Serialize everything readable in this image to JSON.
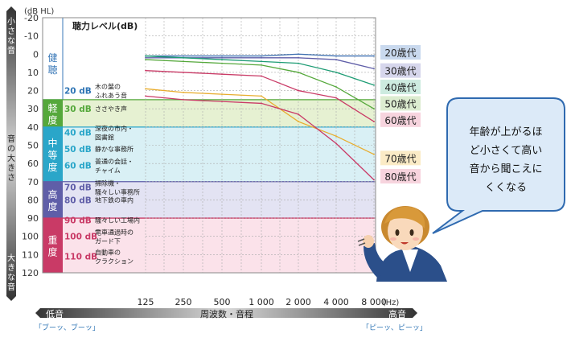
{
  "chart_data": {
    "type": "line",
    "unit_label": "(dB HL)",
    "title": "聴力レベル(dB)",
    "y_ticks": [
      -20,
      -10,
      0,
      10,
      20,
      30,
      40,
      50,
      60,
      70,
      80,
      90,
      100,
      110,
      120
    ],
    "ylim": [
      -20,
      120
    ],
    "x_categories": [
      "125",
      "250",
      "500",
      "1 000",
      "2 000",
      "4 000",
      "8 000"
    ],
    "x_unit": "(Hz)",
    "xlabel": "周波数・音程",
    "x_low_label": "低音",
    "x_high_label": "高音",
    "x_low_sound": "「ブーッ、ブーッ」",
    "x_high_sound": "「ピーッ、ピーッ」",
    "ylabel_top": "小さな音",
    "ylabel_mid": "音の大きさ",
    "ylabel_bottom": "大きな音",
    "bands": [
      {
        "label": "健聴",
        "from": -20,
        "to": 25,
        "color": "#ffffff",
        "bar_color": "#ffffff",
        "text_color": "#3a79b8"
      },
      {
        "label": "軽度",
        "from": 25,
        "to": 40,
        "color": "#e6f1d2",
        "bar_color": "#55a83b",
        "text_color": "#ffffff"
      },
      {
        "label": "中等度",
        "from": 40,
        "to": 70,
        "color": "#d9f0f5",
        "bar_color": "#2aa6c9",
        "text_color": "#ffffff"
      },
      {
        "label": "高度",
        "from": 70,
        "to": 90,
        "color": "#e3e3f3",
        "bar_color": "#5f5ea8",
        "text_color": "#ffffff"
      },
      {
        "label": "重度",
        "from": 90,
        "to": 120,
        "color": "#fbe2ea",
        "bar_color": "#c93a66",
        "text_color": "#ffffff"
      }
    ],
    "examples": [
      {
        "db": "20 dB",
        "text": [
          "木の葉の",
          "ふれあう音"
        ],
        "level": 20,
        "color": "#2f75b5"
      },
      {
        "db": "30 dB",
        "text": [
          "ささやき声"
        ],
        "level": 30,
        "color": "#55a83b"
      },
      {
        "db": "40 dB",
        "text": [
          "深夜の市内・",
          "図書館"
        ],
        "level": 43,
        "color": "#2aa6c9"
      },
      {
        "db": "50 dB",
        "text": [
          "静かな事務所"
        ],
        "level": 52,
        "color": "#2aa6c9"
      },
      {
        "db": "60 dB",
        "text": [
          "普通の会話・",
          "チャイム"
        ],
        "level": 61,
        "color": "#2aa6c9"
      },
      {
        "db": "70 dB",
        "text": [
          "掃除機・",
          "騒々しい事務所"
        ],
        "level": 73,
        "color": "#5f5ea8"
      },
      {
        "db": "80 dB",
        "text": [
          "地下鉄の車内"
        ],
        "level": 80,
        "color": "#5f5ea8"
      },
      {
        "db": "90 dB",
        "text": [
          "騒々しい工場内"
        ],
        "level": 91,
        "color": "#c93a66"
      },
      {
        "db": "100 dB",
        "text": [
          "電車通過時の",
          "ガード下"
        ],
        "level": 100,
        "color": "#c93a66"
      },
      {
        "db": "110 dB",
        "text": [
          "自動車の",
          "クラクション"
        ],
        "level": 111,
        "color": "#c93a66"
      }
    ],
    "series": [
      {
        "name": "20歳代",
        "color": "#3d6fb0",
        "legend_bg": "#c9d9ee",
        "label_level": -1,
        "values": [
          1,
          1,
          1,
          1,
          0,
          1,
          1
        ]
      },
      {
        "name": "30歳代",
        "color": "#5f5ea8",
        "legend_bg": "#d6d6ec",
        "label_level": 9,
        "values": [
          2,
          2,
          2,
          2,
          2,
          3,
          8
        ]
      },
      {
        "name": "40歳代",
        "color": "#1d9c74",
        "legend_bg": "#cdebe0",
        "label_level": 18,
        "values": [
          1,
          2,
          3,
          4,
          5,
          10,
          17
        ]
      },
      {
        "name": "50歳代",
        "color": "#55a83b",
        "legend_bg": "#dcecd0",
        "label_level": 27,
        "values": [
          3,
          4,
          5,
          6,
          10,
          18,
          30
        ]
      },
      {
        "name": "60歳代",
        "color": "#c93a66",
        "legend_bg": "#f7d4de",
        "label_level": 36,
        "values": [
          9,
          10,
          11,
          12,
          20,
          24,
          37
        ]
      },
      {
        "name": "70歳代",
        "color": "#e8ad2f",
        "legend_bg": "#fbebc6",
        "label_level": 57,
        "values": [
          19,
          21,
          22,
          23,
          37,
          45,
          55
        ]
      },
      {
        "name": "80歳代",
        "color": "#c93a66",
        "legend_bg": "#f7d4de",
        "label_level": 67,
        "values": [
          23,
          25,
          26,
          27,
          33,
          49,
          69
        ]
      }
    ]
  },
  "callout": {
    "lines": [
      "年齢が上がるほ",
      "ど小さくて高い",
      "音から聞こえに",
      "くくなる"
    ]
  }
}
